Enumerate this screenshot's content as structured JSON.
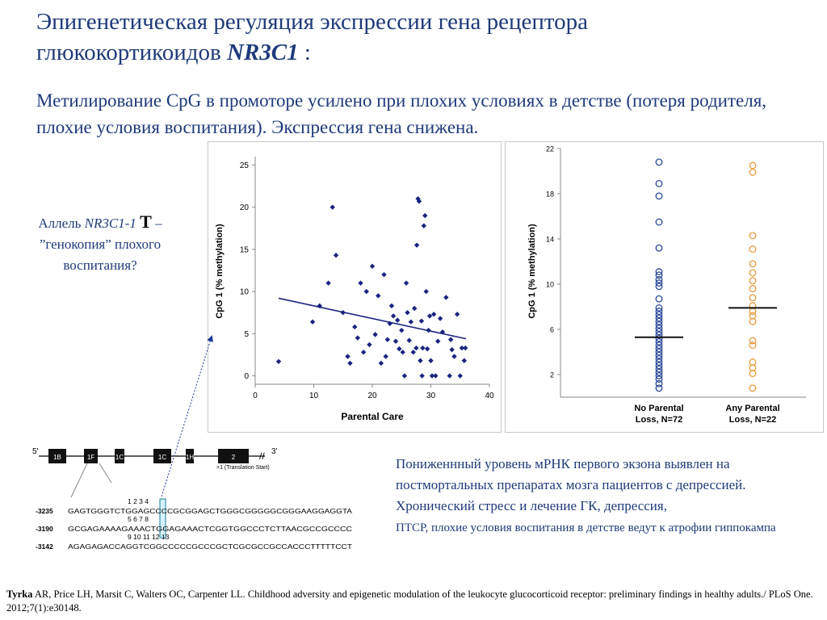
{
  "title": {
    "line1": "Эпигенетическая регуляция экспрессии гена рецептора",
    "line2_prefix": "глюкокортикоидов ",
    "gene": "NR3C1",
    "colon": " :"
  },
  "subtitle": "Метилирование CpG в промоторе усилено при плохих условиях в детстве (потеря родителя, плохие условия воспитания). Экспрессия гена снижена.",
  "allele": {
    "prefix": "Аллель ",
    "gene": "NR3C1-1",
    "variant": "T",
    "dash": " –",
    "rest": "”генокопия” плохого воспитания?"
  },
  "note": {
    "line1": "Пониженнный уровень мРНК первого экзона выявлен на постмортальных препаратах мозга пациентов с депрессией.",
    "line2": "Хронический стресс и лечение ГК, депрессия,",
    "line3": "ПТСР, плохие условия воспитания в детстве  ведут к атрофии гиппокампа"
  },
  "citation": {
    "author": "Tyrka",
    "text": " AR, Price LH, Marsit C, Walters OC, Carpenter LL. Childhood adversity and epigenetic modulation of the leukocyte glucocorticoid receptor: preliminary findings in healthy adults./ PLoS One. 2012;7(1):e30148."
  },
  "gene_diagram": {
    "five_prime": "5'",
    "three_prime": "3'",
    "exons": [
      "1B",
      "1F",
      "1C",
      "1C",
      "1H",
      "2"
    ],
    "translation_start": "+1 (Translation Start)",
    "rows": [
      {
        "pos": "-3235",
        "seq": "GAGTGGGTCTGGAGCCCCGCGGAGCTGGGCGGGGGCGGGAAGGAGGTA",
        "site_numbers": "1      2                 3          4"
      },
      {
        "pos": "-3190",
        "seq": "GCGAGAAAAGAAACTGGAGAAACTCGGTGGCCCTCTTAACGCCGCCCC",
        "site_numbers": "5                              6                  7     8"
      },
      {
        "pos": "-3142",
        "seq": "AGAGAGACCAGGTCGGCCCCCGCCCGCTCGCGCCGCCACCCTTTTTCCT",
        "site_numbers": "9             10   11        12   13"
      }
    ]
  },
  "chart_data": [
    {
      "type": "scatter",
      "title": "",
      "xlabel": "Parental Care",
      "ylabel": "CpG 1 (% methylation)",
      "xlim": [
        0,
        40
      ],
      "ylim": [
        -1,
        26
      ],
      "xticks": [
        0,
        10,
        20,
        30,
        40
      ],
      "yticks": [
        0,
        5,
        10,
        15,
        20,
        25
      ],
      "grid": false,
      "marker_color": "#1a237e",
      "points": [
        [
          4,
          1.7
        ],
        [
          9.8,
          6.4
        ],
        [
          11,
          8.3
        ],
        [
          12.5,
          11
        ],
        [
          13.2,
          20
        ],
        [
          13.8,
          14.3
        ],
        [
          15,
          7.5
        ],
        [
          15.8,
          2.3
        ],
        [
          16.2,
          1.5
        ],
        [
          17,
          5.8
        ],
        [
          17.5,
          4.5
        ],
        [
          18,
          11
        ],
        [
          18.5,
          2.8
        ],
        [
          19,
          10
        ],
        [
          19.5,
          3.7
        ],
        [
          20,
          13
        ],
        [
          20.5,
          4.9
        ],
        [
          21,
          9.5
        ],
        [
          21.5,
          1.5
        ],
        [
          22,
          12
        ],
        [
          22.3,
          2.3
        ],
        [
          22.6,
          4.3
        ],
        [
          23,
          6.2
        ],
        [
          23.3,
          8.3
        ],
        [
          23.6,
          7.1
        ],
        [
          24,
          4.1
        ],
        [
          24.3,
          6.6
        ],
        [
          24.6,
          3.2
        ],
        [
          25,
          5.4
        ],
        [
          25.2,
          2.8
        ],
        [
          25.5,
          0
        ],
        [
          25.8,
          11
        ],
        [
          26,
          7.5
        ],
        [
          26.3,
          4.2
        ],
        [
          26.6,
          6.4
        ],
        [
          27,
          2.8
        ],
        [
          27.2,
          8
        ],
        [
          27.5,
          3.3
        ],
        [
          27.6,
          15.5
        ],
        [
          27.8,
          21
        ],
        [
          28,
          20.7
        ],
        [
          28.2,
          1.8
        ],
        [
          28.4,
          6.5
        ],
        [
          28.5,
          0
        ],
        [
          28.6,
          3.3
        ],
        [
          28.8,
          17.8
        ],
        [
          29,
          19
        ],
        [
          29.2,
          10
        ],
        [
          29.4,
          3.2
        ],
        [
          29.6,
          5.4
        ],
        [
          29.8,
          7.1
        ],
        [
          30,
          1.8
        ],
        [
          30.2,
          0
        ],
        [
          30.5,
          7.3
        ],
        [
          30.8,
          0
        ],
        [
          31.2,
          4.1
        ],
        [
          31.6,
          6.8
        ],
        [
          32,
          5.2
        ],
        [
          32.6,
          9.3
        ],
        [
          33.2,
          0
        ],
        [
          33.4,
          4.3
        ],
        [
          33.6,
          3.1
        ],
        [
          34,
          2.3
        ],
        [
          34.5,
          7.3
        ],
        [
          35,
          0
        ],
        [
          35.3,
          3.3
        ],
        [
          35.7,
          1.8
        ],
        [
          35.9,
          3.3
        ]
      ],
      "trendline": [
        [
          4,
          9.2
        ],
        [
          36,
          4.4
        ]
      ]
    },
    {
      "type": "scatter",
      "title": "",
      "xlabel": "",
      "ylabel": "CpG 1 (% methylation)",
      "ylim": [
        0,
        22
      ],
      "yticks": [
        2,
        6,
        10,
        14,
        18,
        22
      ],
      "categories": [
        "No Parental Loss, N=72",
        "Any Parental Loss, N=22"
      ],
      "category_lines": [
        [
          "No Parental",
          "Loss, N=72"
        ],
        [
          "Any Parental",
          "Loss, N=22"
        ]
      ],
      "series": [
        {
          "name": "No Parental Loss, N=72",
          "color": "#2c4a9a",
          "mean": 5.3,
          "values": [
            20.8,
            18.9,
            17.8,
            15.5,
            13.2,
            11.1,
            10.8,
            10.4,
            10.1,
            9.8,
            8.7,
            7.9,
            7.6,
            7.3,
            7.0,
            6.7,
            6.4,
            6.1,
            5.8,
            5.5,
            5.2,
            4.9,
            4.6,
            4.3,
            4.0,
            3.7,
            3.4,
            3.1,
            2.8,
            2.5,
            2.2,
            1.9,
            1.6,
            1.2,
            0.8
          ]
        },
        {
          "name": "Any Parental Loss, N=22",
          "color": "#e59a3c",
          "mean": 7.9,
          "values": [
            20.5,
            19.9,
            14.3,
            13.1,
            11.8,
            11.0,
            10.3,
            9.6,
            8.8,
            8.1,
            7.6,
            7.2,
            6.7,
            5.0,
            4.6,
            3.1,
            2.6,
            2.1,
            0.8
          ]
        }
      ]
    }
  ]
}
